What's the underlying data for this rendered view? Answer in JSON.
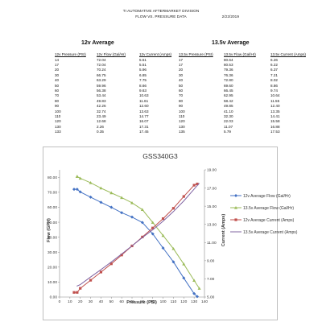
{
  "header": {
    "line1": "TI AUTOMATIVE AFTERMARKET DIVISION",
    "line2": "FLOW  VS.  PRESSURE DATA",
    "date": "2/22/2019"
  },
  "tables": {
    "t12": {
      "title": "12v Average",
      "headers": [
        "12v Pressure (PSI)",
        "12v Flow (Gal/Hr)",
        "12v Current (Amps)"
      ],
      "rows": [
        [
          "14",
          "72.04",
          "5.51"
        ],
        [
          "17",
          "72.04",
          "5.51"
        ],
        [
          "20",
          "70.24",
          "5.96"
        ],
        [
          "30",
          "66.75",
          "6.85"
        ],
        [
          "40",
          "63.29",
          "7.75"
        ],
        [
          "50",
          "59.96",
          "8.66"
        ],
        [
          "60",
          "56.38",
          "9.63"
        ],
        [
          "70",
          "53.44",
          "10.63"
        ],
        [
          "80",
          "49.83",
          "11.61"
        ],
        [
          "90",
          "42.26",
          "12.60"
        ],
        [
          "100",
          "32.74",
          "13.63"
        ],
        [
          "110",
          "23.49",
          "14.77"
        ],
        [
          "120",
          "12.68",
          "16.07"
        ],
        [
          "130",
          "2.26",
          "17.31"
        ],
        [
          "133",
          "0.35",
          "17.45"
        ]
      ]
    },
    "t135": {
      "title": "13.5v Average",
      "headers": [
        "13.5v Pressure (PSI)",
        "13.5v Flow (Gal/Hr)",
        "13.5v Current (Amps)"
      ],
      "rows": [
        [
          "17",
          "80.64",
          "6.26"
        ],
        [
          "17",
          "80.53",
          "6.22"
        ],
        [
          "20",
          "79.36",
          "6.37"
        ],
        [
          "30",
          "76.36",
          "7.21"
        ],
        [
          "40",
          "72.80",
          "8.02"
        ],
        [
          "50",
          "69.60",
          "8.86"
        ],
        [
          "60",
          "66.45",
          "9.74"
        ],
        [
          "70",
          "62.95",
          "10.64"
        ],
        [
          "80",
          "58.42",
          "11.55"
        ],
        [
          "90",
          "49.85",
          "12.40"
        ],
        [
          "100",
          "41.10",
          "13.35"
        ],
        [
          "110",
          "32.30",
          "14.41"
        ],
        [
          "120",
          "22.03",
          "15.58"
        ],
        [
          "130",
          "11.07",
          "16.88"
        ],
        [
          "135",
          "5.79",
          "17.53"
        ]
      ]
    }
  },
  "chart_data": {
    "type": "line",
    "title": "GSS340G3",
    "xlabel": "Pressure (PSI)",
    "ylabel": "Flow (GPH)",
    "y2label": "Current (Amps)",
    "xlim": [
      0,
      140
    ],
    "ylim": [
      0,
      85
    ],
    "y2lim": [
      5,
      19
    ],
    "xticks": [
      "0",
      "10",
      "20",
      "30",
      "40",
      "50",
      "60",
      "70",
      "80",
      "90",
      "100",
      "110",
      "120",
      "130",
      "140"
    ],
    "yticks": [
      "0.00",
      "10.00",
      "20.00",
      "30.00",
      "40.00",
      "50.00",
      "60.00",
      "70.00",
      "80.00"
    ],
    "y2ticks": [
      "5.00",
      "7.00",
      "9.00",
      "11.00",
      "13.00",
      "15.00",
      "17.00",
      "19.00"
    ],
    "legend_position": "right",
    "grid": false,
    "series": [
      {
        "name": "12v Average Flow (Gal/Hr)",
        "axis": "left",
        "color": "#4472C4",
        "marker": "diamond",
        "x": [
          14,
          17,
          20,
          30,
          40,
          50,
          60,
          70,
          80,
          90,
          100,
          110,
          120,
          130,
          133
        ],
        "y": [
          72.04,
          72.04,
          70.24,
          66.75,
          63.29,
          59.96,
          56.38,
          53.44,
          49.83,
          42.26,
          32.74,
          23.49,
          12.68,
          2.26,
          0.35
        ]
      },
      {
        "name": "13.5v Average Flow (Gal/Hr)",
        "axis": "left",
        "color": "#9BBB59",
        "marker": "triangle",
        "x": [
          17,
          17,
          20,
          30,
          40,
          50,
          60,
          70,
          80,
          90,
          100,
          110,
          120,
          130,
          135
        ],
        "y": [
          80.64,
          80.53,
          79.36,
          76.36,
          72.8,
          69.6,
          66.45,
          62.95,
          58.42,
          49.85,
          41.1,
          32.3,
          22.03,
          11.07,
          5.79
        ]
      },
      {
        "name": "12v Average Current (Amps)",
        "axis": "right",
        "color": "#C0504D",
        "marker": "square",
        "x": [
          14,
          17,
          20,
          30,
          40,
          50,
          60,
          70,
          80,
          90,
          100,
          110,
          120,
          130,
          133
        ],
        "y": [
          5.51,
          5.51,
          5.96,
          6.85,
          7.75,
          8.66,
          9.63,
          10.63,
          11.61,
          12.6,
          13.63,
          14.77,
          16.07,
          17.31,
          17.45
        ]
      },
      {
        "name": "13.5v Average Current (Amps)",
        "axis": "right",
        "color": "#8064A2",
        "marker": "none",
        "x": [
          17,
          17,
          20,
          30,
          40,
          50,
          60,
          70,
          80,
          90,
          100,
          110,
          120,
          130,
          135
        ],
        "y": [
          6.26,
          6.22,
          6.37,
          7.21,
          8.02,
          8.86,
          9.74,
          10.64,
          11.55,
          12.4,
          13.35,
          14.41,
          15.58,
          16.88,
          17.53
        ]
      }
    ]
  }
}
